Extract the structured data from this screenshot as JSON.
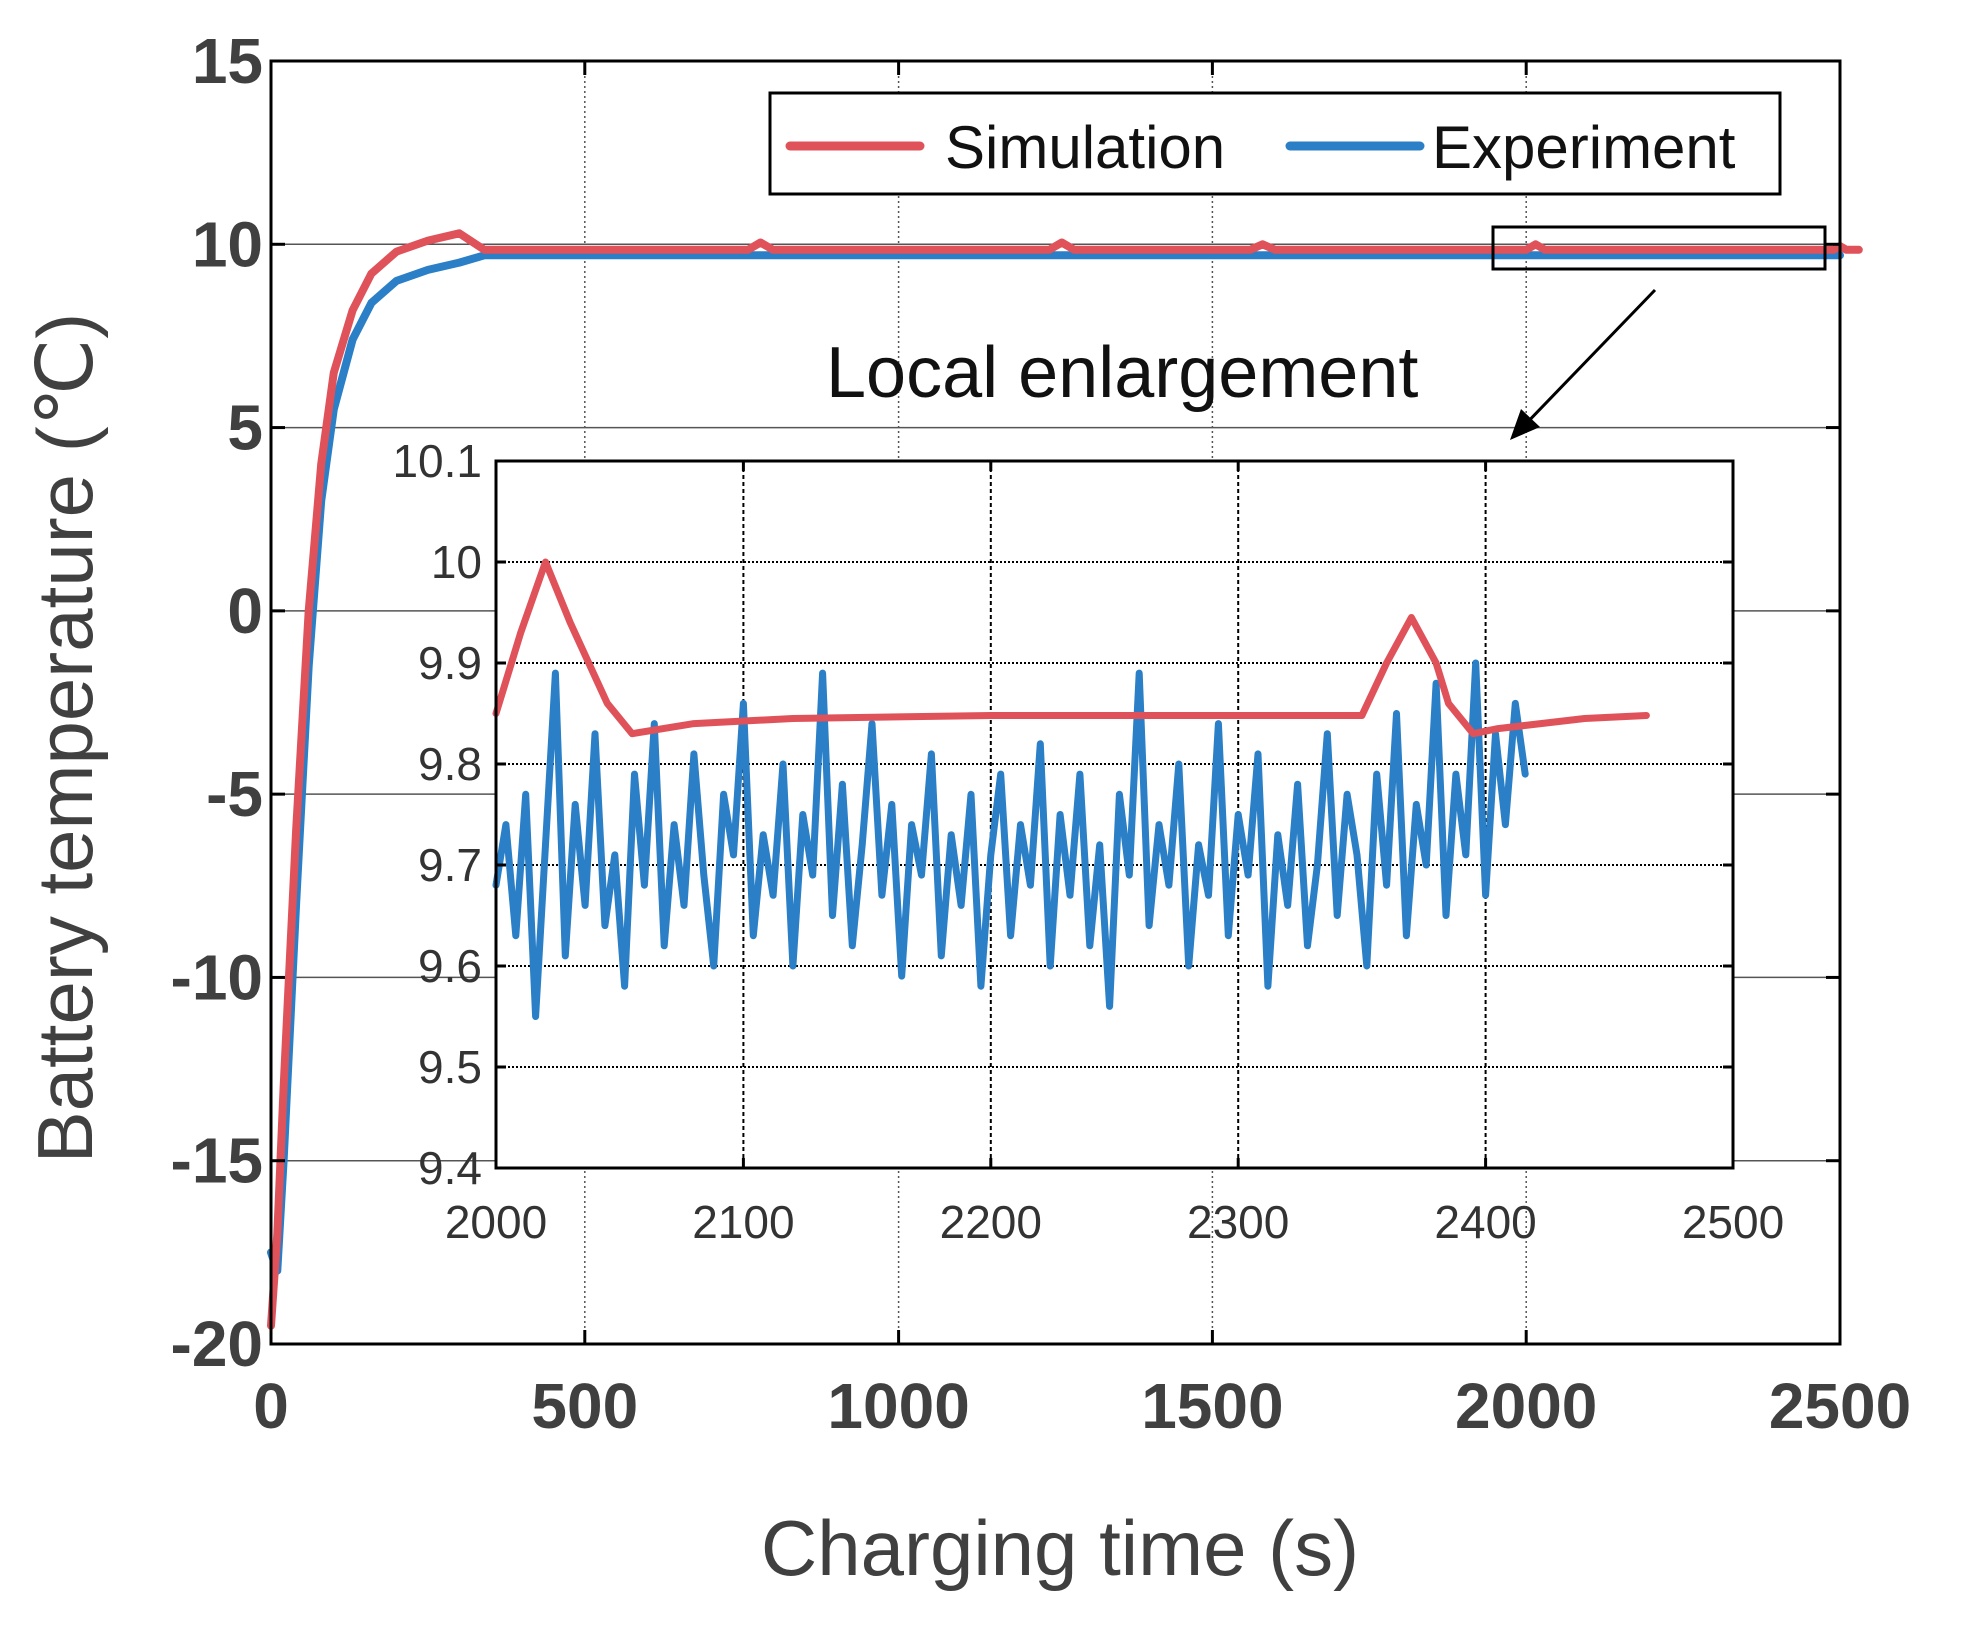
{
  "chart_data": [
    {
      "type": "line",
      "role": "main",
      "xlabel": "Charging time (s)",
      "ylabel": "Battery temperature (℃)",
      "xlim": [
        0,
        2500
      ],
      "ylim": [
        -20,
        15
      ],
      "xticks": [
        "0",
        "500",
        "1000",
        "1500",
        "2000",
        "2500"
      ],
      "yticks": [
        "-20",
        "-15",
        "-10",
        "-5",
        "0",
        "5",
        "10",
        "15"
      ],
      "grid": true,
      "legend": {
        "position": "top-right",
        "entries": [
          "Simulation",
          "Experiment"
        ]
      },
      "annotation": "Local enlargement",
      "series": [
        {
          "name": "Simulation",
          "color": "#e0525a",
          "x": [
            0,
            10,
            20,
            40,
            60,
            80,
            100,
            130,
            160,
            200,
            250,
            300,
            340,
            370,
            760,
            780,
            800,
            1240,
            1260,
            1280,
            1560,
            1580,
            1600,
            2000,
            2015,
            2030,
            2490,
            2500,
            2510,
            2530
          ],
          "y": [
            -19.5,
            -17.0,
            -13.0,
            -6.0,
            0.0,
            4.0,
            6.5,
            8.2,
            9.2,
            9.8,
            10.1,
            10.3,
            9.85,
            9.85,
            9.85,
            10.05,
            9.85,
            9.85,
            10.05,
            9.85,
            9.85,
            10.0,
            9.85,
            9.85,
            10.0,
            9.85,
            9.85,
            9.95,
            9.85,
            9.85
          ]
        },
        {
          "name": "Experiment",
          "color": "#2a7fc6",
          "x": [
            0,
            10,
            20,
            40,
            60,
            80,
            100,
            130,
            160,
            200,
            250,
            300,
            340,
            400,
            700,
            1000,
            1300,
            1600,
            1900,
            2200,
            2500
          ],
          "y": [
            -17.5,
            -18.0,
            -15.0,
            -8.0,
            -1.5,
            3.0,
            5.5,
            7.4,
            8.4,
            9.0,
            9.3,
            9.5,
            9.7,
            9.7,
            9.7,
            9.7,
            9.7,
            9.7,
            9.7,
            9.7,
            9.7
          ]
        }
      ]
    },
    {
      "type": "line",
      "role": "inset",
      "xlim": [
        2000,
        2500
      ],
      "ylim": [
        9.4,
        10.1
      ],
      "xticks": [
        "2000",
        "2100",
        "2200",
        "2300",
        "2400",
        "2500"
      ],
      "yticks": [
        "9.4",
        "9.5",
        "9.6",
        "9.7",
        "9.8",
        "9.9",
        "10",
        "10.1"
      ],
      "grid": true,
      "series": [
        {
          "name": "Simulation",
          "color": "#e0525a",
          "x": [
            2000,
            2010,
            2020,
            2030,
            2045,
            2055,
            2080,
            2120,
            2200,
            2300,
            2350,
            2360,
            2370,
            2380,
            2385,
            2395,
            2405,
            2440,
            2465
          ],
          "y": [
            9.85,
            9.93,
            10.0,
            9.94,
            9.86,
            9.83,
            9.84,
            9.845,
            9.848,
            9.848,
            9.848,
            9.9,
            9.945,
            9.9,
            9.86,
            9.83,
            9.835,
            9.845,
            9.848
          ]
        },
        {
          "name": "Experiment",
          "color": "#2a7fc6",
          "x": [
            2000,
            2004,
            2008,
            2012,
            2016,
            2020,
            2024,
            2028,
            2032,
            2036,
            2040,
            2044,
            2048,
            2052,
            2056,
            2060,
            2064,
            2068,
            2072,
            2076,
            2080,
            2084,
            2088,
            2092,
            2096,
            2100,
            2104,
            2108,
            2112,
            2116,
            2120,
            2124,
            2128,
            2132,
            2136,
            2140,
            2144,
            2148,
            2152,
            2156,
            2160,
            2164,
            2168,
            2172,
            2176,
            2180,
            2184,
            2188,
            2192,
            2196,
            2200,
            2204,
            2208,
            2212,
            2216,
            2220,
            2224,
            2228,
            2232,
            2236,
            2240,
            2244,
            2248,
            2252,
            2256,
            2260,
            2264,
            2268,
            2272,
            2276,
            2280,
            2284,
            2288,
            2292,
            2296,
            2300,
            2304,
            2308,
            2312,
            2316,
            2320,
            2324,
            2328,
            2332,
            2336,
            2340,
            2344,
            2348,
            2352,
            2356,
            2360,
            2364,
            2368,
            2372,
            2376,
            2380,
            2384,
            2388,
            2392,
            2396,
            2400,
            2404,
            2408,
            2412,
            2416
          ],
          "y": [
            9.68,
            9.74,
            9.63,
            9.77,
            9.55,
            9.72,
            9.89,
            9.61,
            9.76,
            9.66,
            9.83,
            9.64,
            9.71,
            9.58,
            9.79,
            9.68,
            9.84,
            9.62,
            9.74,
            9.66,
            9.81,
            9.69,
            9.6,
            9.77,
            9.71,
            9.86,
            9.63,
            9.73,
            9.67,
            9.8,
            9.6,
            9.75,
            9.69,
            9.89,
            9.65,
            9.78,
            9.62,
            9.72,
            9.84,
            9.67,
            9.76,
            9.59,
            9.74,
            9.69,
            9.81,
            9.61,
            9.73,
            9.66,
            9.77,
            9.58,
            9.71,
            9.79,
            9.63,
            9.74,
            9.68,
            9.82,
            9.6,
            9.75,
            9.67,
            9.79,
            9.62,
            9.72,
            9.56,
            9.77,
            9.69,
            9.89,
            9.64,
            9.74,
            9.68,
            9.8,
            9.6,
            9.72,
            9.67,
            9.84,
            9.63,
            9.75,
            9.69,
            9.81,
            9.58,
            9.73,
            9.66,
            9.78,
            9.62,
            9.7,
            9.83,
            9.65,
            9.77,
            9.71,
            9.6,
            9.79,
            9.68,
            9.85,
            9.63,
            9.76,
            9.7,
            9.88,
            9.65,
            9.79,
            9.71,
            9.9,
            9.67,
            9.83,
            9.74,
            9.86,
            9.79
          ]
        }
      ]
    }
  ]
}
